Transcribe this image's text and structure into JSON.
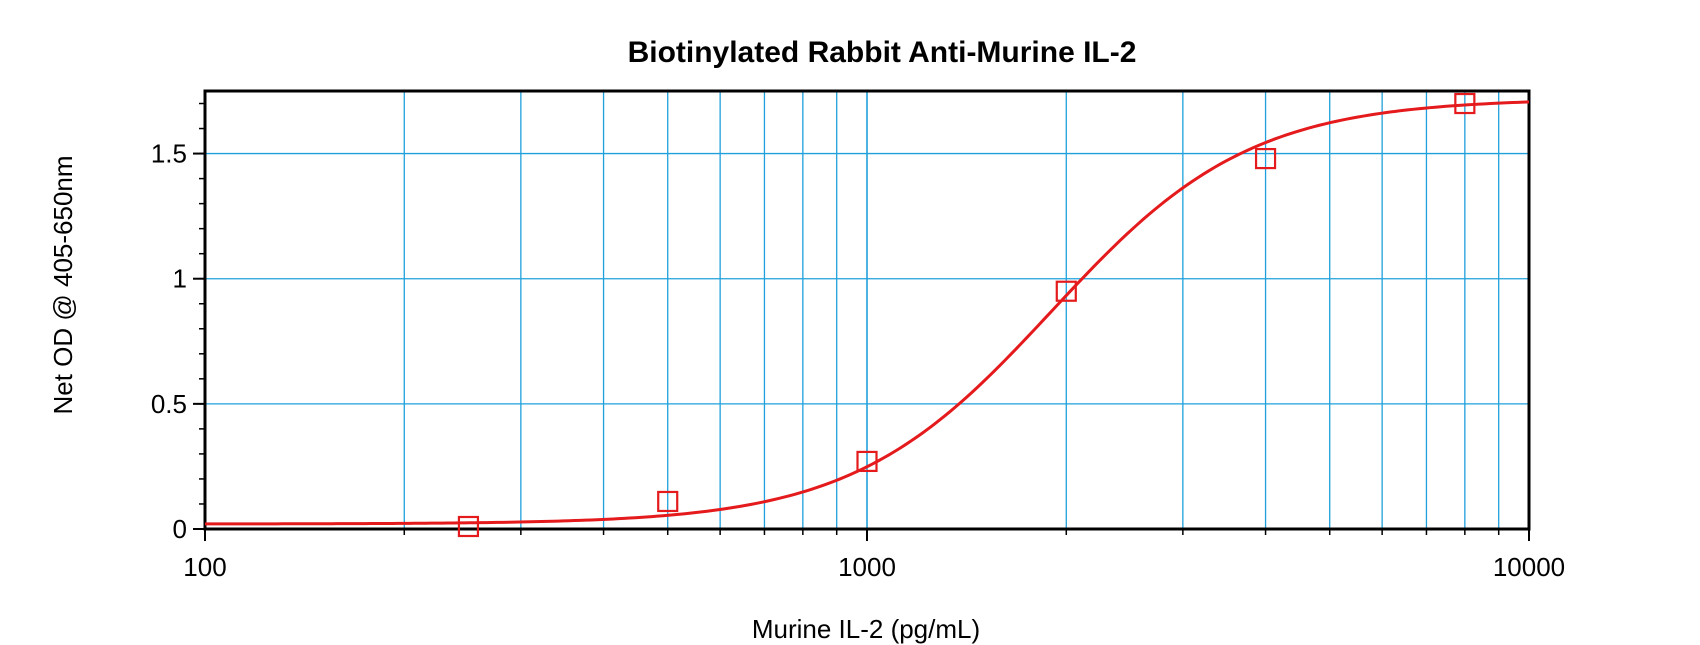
{
  "chart_data": {
    "type": "scatter",
    "title": "Biotinylated Rabbit Anti-Murine IL-2",
    "xlabel": "Murine IL-2 (pg/mL)",
    "ylabel": "Net OD @ 405-650nm",
    "xscale": "log",
    "xlim": [
      100,
      10000
    ],
    "ylim": [
      0,
      1.75
    ],
    "grid": true,
    "x_ticks": [
      {
        "value": 100,
        "label": "100"
      },
      {
        "value": 1000,
        "label": "1000"
      },
      {
        "value": 10000,
        "label": "10000"
      }
    ],
    "y_ticks": [
      {
        "value": 0,
        "label": "0"
      },
      {
        "value": 0.5,
        "label": "0.5"
      },
      {
        "value": 1,
        "label": "1"
      },
      {
        "value": 1.5,
        "label": "1.5"
      }
    ],
    "series": [
      {
        "marker": "square",
        "color": "#e41a1c",
        "x": [
          250,
          500,
          1000,
          2000,
          4000,
          8000
        ],
        "y": [
          0.01,
          0.11,
          0.27,
          0.95,
          1.48,
          1.7
        ]
      }
    ],
    "fit_curve": {
      "type": "4-parameter logistic",
      "color": "#e41a1c",
      "bottom": 0.02,
      "top": 1.72,
      "ec50": 1900,
      "hill": 2.9
    },
    "colors": {
      "grid": "#1fa0dc",
      "data": "#e41a1c",
      "axis": "#000000"
    }
  }
}
